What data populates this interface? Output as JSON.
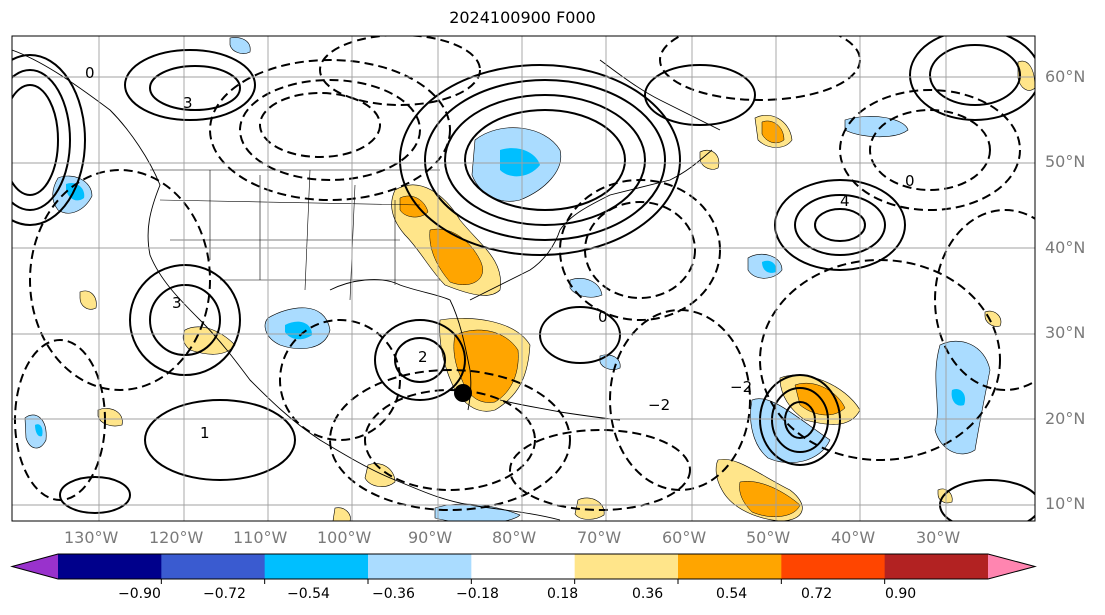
{
  "title": "2024100900 F000",
  "lat_labels": [
    "60°N",
    "50°N",
    "40°N",
    "30°N",
    "20°N",
    "10°N"
  ],
  "lon_labels": [
    "130°W",
    "120°W",
    "110°W",
    "100°W",
    "90°W",
    "80°W",
    "70°W",
    "60°W",
    "50°W",
    "40°W",
    "30°W"
  ],
  "colorbar": {
    "ticks": [
      "−0.90",
      "−0.72",
      "−0.54",
      "−0.36",
      "−0.18",
      "0.18",
      "0.36",
      "0.54",
      "0.72",
      "0.90"
    ],
    "colors": [
      "#9932cc",
      "#00008b",
      "#3a5bd0",
      "#00bfff",
      "#aadcff",
      "#ffffff",
      "#ffe58a",
      "#ffa500",
      "#ff4500",
      "#b22222",
      "#ff85b0"
    ]
  },
  "contour_labels": {
    "nw_low": "3",
    "gulf_low": "2",
    "pacific_high_left": "0",
    "pacific_south": "1",
    "atlantic_mid": "4",
    "atlantic_neg": "−2",
    "nova": "−2",
    "trop_low": "3",
    "east_e": "0",
    "central_zero": "0"
  },
  "storm_marker": "storm-center"
}
